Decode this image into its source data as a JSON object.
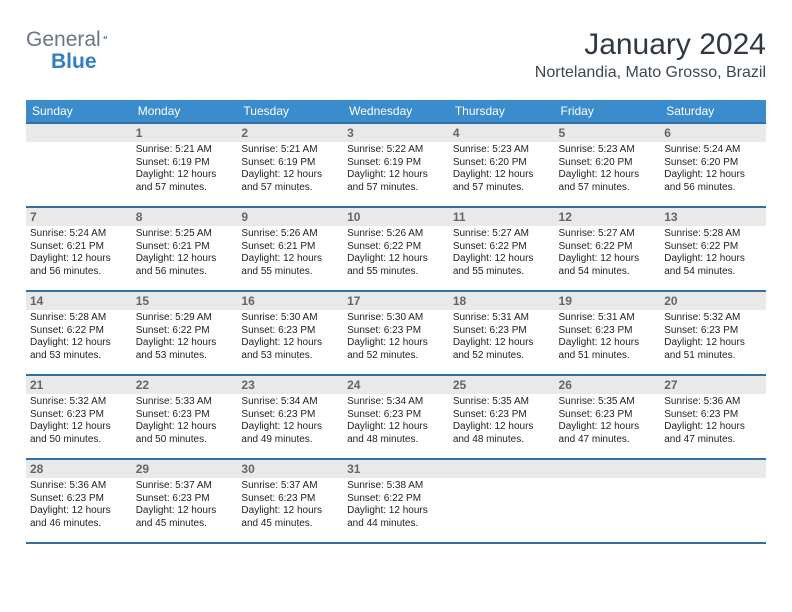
{
  "logo": {
    "part1": "General",
    "part2": "Blue"
  },
  "title": "January 2024",
  "location": "Nortelandia, Mato Grosso, Brazil",
  "colors": {
    "header_bg": "#3a8ccc",
    "header_border": "#3171a7",
    "daynum_bg": "#e9e9e9",
    "daynum_fg": "#61666b",
    "text": "#1f1f1f",
    "logo_gray": "#6b7682",
    "logo_blue": "#2f7fc2",
    "title_color": "#303942"
  },
  "weekdays": [
    "Sunday",
    "Monday",
    "Tuesday",
    "Wednesday",
    "Thursday",
    "Friday",
    "Saturday"
  ],
  "first_weekday_index": 1,
  "days": [
    {
      "n": 1,
      "sunrise": "5:21 AM",
      "sunset": "6:19 PM",
      "daylight": "12 hours and 57 minutes."
    },
    {
      "n": 2,
      "sunrise": "5:21 AM",
      "sunset": "6:19 PM",
      "daylight": "12 hours and 57 minutes."
    },
    {
      "n": 3,
      "sunrise": "5:22 AM",
      "sunset": "6:19 PM",
      "daylight": "12 hours and 57 minutes."
    },
    {
      "n": 4,
      "sunrise": "5:23 AM",
      "sunset": "6:20 PM",
      "daylight": "12 hours and 57 minutes."
    },
    {
      "n": 5,
      "sunrise": "5:23 AM",
      "sunset": "6:20 PM",
      "daylight": "12 hours and 57 minutes."
    },
    {
      "n": 6,
      "sunrise": "5:24 AM",
      "sunset": "6:20 PM",
      "daylight": "12 hours and 56 minutes."
    },
    {
      "n": 7,
      "sunrise": "5:24 AM",
      "sunset": "6:21 PM",
      "daylight": "12 hours and 56 minutes."
    },
    {
      "n": 8,
      "sunrise": "5:25 AM",
      "sunset": "6:21 PM",
      "daylight": "12 hours and 56 minutes."
    },
    {
      "n": 9,
      "sunrise": "5:26 AM",
      "sunset": "6:21 PM",
      "daylight": "12 hours and 55 minutes."
    },
    {
      "n": 10,
      "sunrise": "5:26 AM",
      "sunset": "6:22 PM",
      "daylight": "12 hours and 55 minutes."
    },
    {
      "n": 11,
      "sunrise": "5:27 AM",
      "sunset": "6:22 PM",
      "daylight": "12 hours and 55 minutes."
    },
    {
      "n": 12,
      "sunrise": "5:27 AM",
      "sunset": "6:22 PM",
      "daylight": "12 hours and 54 minutes."
    },
    {
      "n": 13,
      "sunrise": "5:28 AM",
      "sunset": "6:22 PM",
      "daylight": "12 hours and 54 minutes."
    },
    {
      "n": 14,
      "sunrise": "5:28 AM",
      "sunset": "6:22 PM",
      "daylight": "12 hours and 53 minutes."
    },
    {
      "n": 15,
      "sunrise": "5:29 AM",
      "sunset": "6:22 PM",
      "daylight": "12 hours and 53 minutes."
    },
    {
      "n": 16,
      "sunrise": "5:30 AM",
      "sunset": "6:23 PM",
      "daylight": "12 hours and 53 minutes."
    },
    {
      "n": 17,
      "sunrise": "5:30 AM",
      "sunset": "6:23 PM",
      "daylight": "12 hours and 52 minutes."
    },
    {
      "n": 18,
      "sunrise": "5:31 AM",
      "sunset": "6:23 PM",
      "daylight": "12 hours and 52 minutes."
    },
    {
      "n": 19,
      "sunrise": "5:31 AM",
      "sunset": "6:23 PM",
      "daylight": "12 hours and 51 minutes."
    },
    {
      "n": 20,
      "sunrise": "5:32 AM",
      "sunset": "6:23 PM",
      "daylight": "12 hours and 51 minutes."
    },
    {
      "n": 21,
      "sunrise": "5:32 AM",
      "sunset": "6:23 PM",
      "daylight": "12 hours and 50 minutes."
    },
    {
      "n": 22,
      "sunrise": "5:33 AM",
      "sunset": "6:23 PM",
      "daylight": "12 hours and 50 minutes."
    },
    {
      "n": 23,
      "sunrise": "5:34 AM",
      "sunset": "6:23 PM",
      "daylight": "12 hours and 49 minutes."
    },
    {
      "n": 24,
      "sunrise": "5:34 AM",
      "sunset": "6:23 PM",
      "daylight": "12 hours and 48 minutes."
    },
    {
      "n": 25,
      "sunrise": "5:35 AM",
      "sunset": "6:23 PM",
      "daylight": "12 hours and 48 minutes."
    },
    {
      "n": 26,
      "sunrise": "5:35 AM",
      "sunset": "6:23 PM",
      "daylight": "12 hours and 47 minutes."
    },
    {
      "n": 27,
      "sunrise": "5:36 AM",
      "sunset": "6:23 PM",
      "daylight": "12 hours and 47 minutes."
    },
    {
      "n": 28,
      "sunrise": "5:36 AM",
      "sunset": "6:23 PM",
      "daylight": "12 hours and 46 minutes."
    },
    {
      "n": 29,
      "sunrise": "5:37 AM",
      "sunset": "6:23 PM",
      "daylight": "12 hours and 45 minutes."
    },
    {
      "n": 30,
      "sunrise": "5:37 AM",
      "sunset": "6:23 PM",
      "daylight": "12 hours and 45 minutes."
    },
    {
      "n": 31,
      "sunrise": "5:38 AM",
      "sunset": "6:22 PM",
      "daylight": "12 hours and 44 minutes."
    }
  ],
  "labels": {
    "sunrise": "Sunrise:",
    "sunset": "Sunset:",
    "daylight": "Daylight:"
  }
}
